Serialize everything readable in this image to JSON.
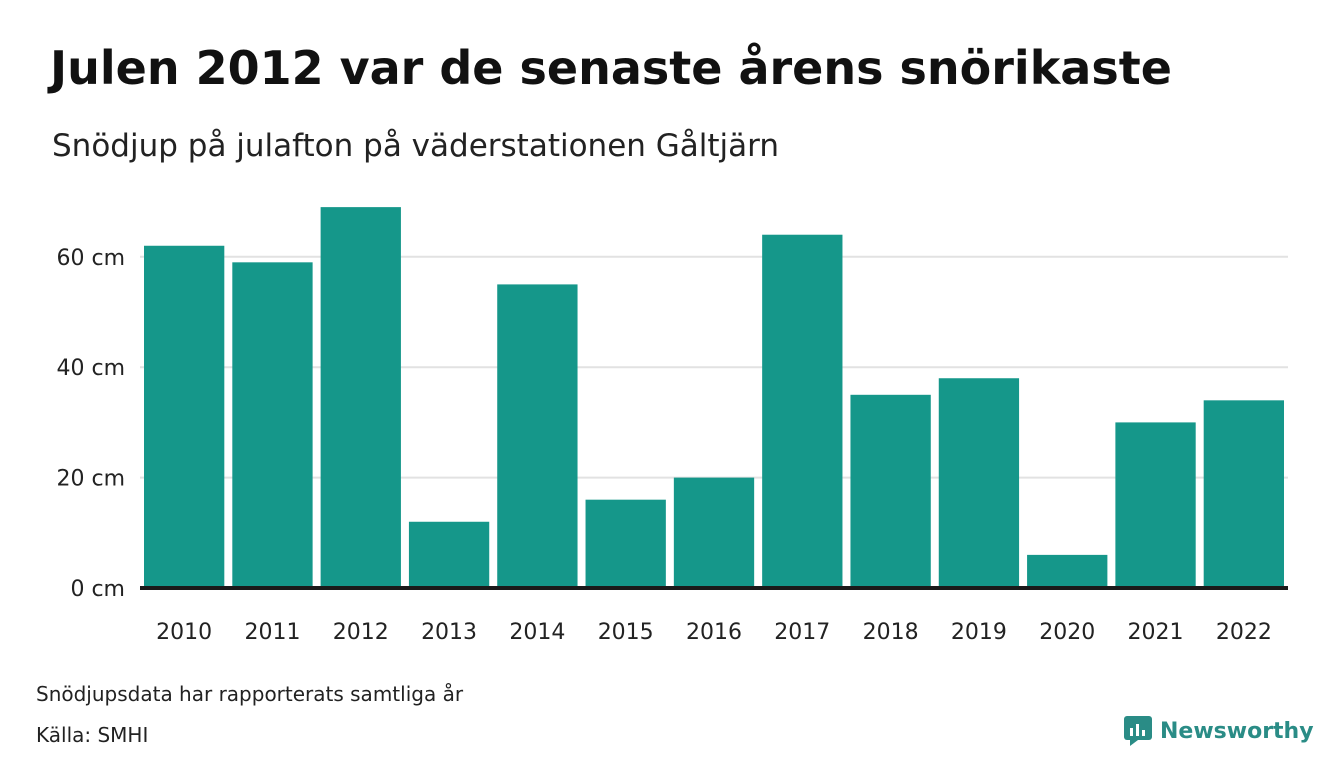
{
  "header": {
    "title": "Julen 2012 var de senaste årens snörikaste",
    "subtitle": "Snödjup på julafton på väderstationen Gåltjärn"
  },
  "footer": {
    "note": "Snödjupsdata har rapporterats samtliga år",
    "source": "Källa: SMHI",
    "brand": "Newsworthy",
    "brand_icon": "newsworthy-logo-icon",
    "brand_color": "#2a8c86"
  },
  "chart_data": {
    "type": "bar",
    "categories": [
      "2010",
      "2011",
      "2012",
      "2013",
      "2014",
      "2015",
      "2016",
      "2017",
      "2018",
      "2019",
      "2020",
      "2021",
      "2022"
    ],
    "values": [
      62,
      59,
      69,
      12,
      55,
      16,
      20,
      64,
      35,
      38,
      6,
      30,
      34
    ],
    "ylim": [
      0,
      70
    ],
    "yticks": [
      0,
      20,
      40,
      60
    ],
    "ytick_labels": [
      "0 cm",
      "20 cm",
      "40 cm",
      "60 cm"
    ],
    "title": "Julen 2012 var de senaste årens snörikaste",
    "subtitle": "Snödjup på julafton på väderstationen Gåltjärn",
    "xlabel": "",
    "ylabel": "",
    "grid": true,
    "bar_color": "#15978a",
    "baseline_color": "#1a1a1a",
    "grid_color": "#e2e2e2"
  }
}
